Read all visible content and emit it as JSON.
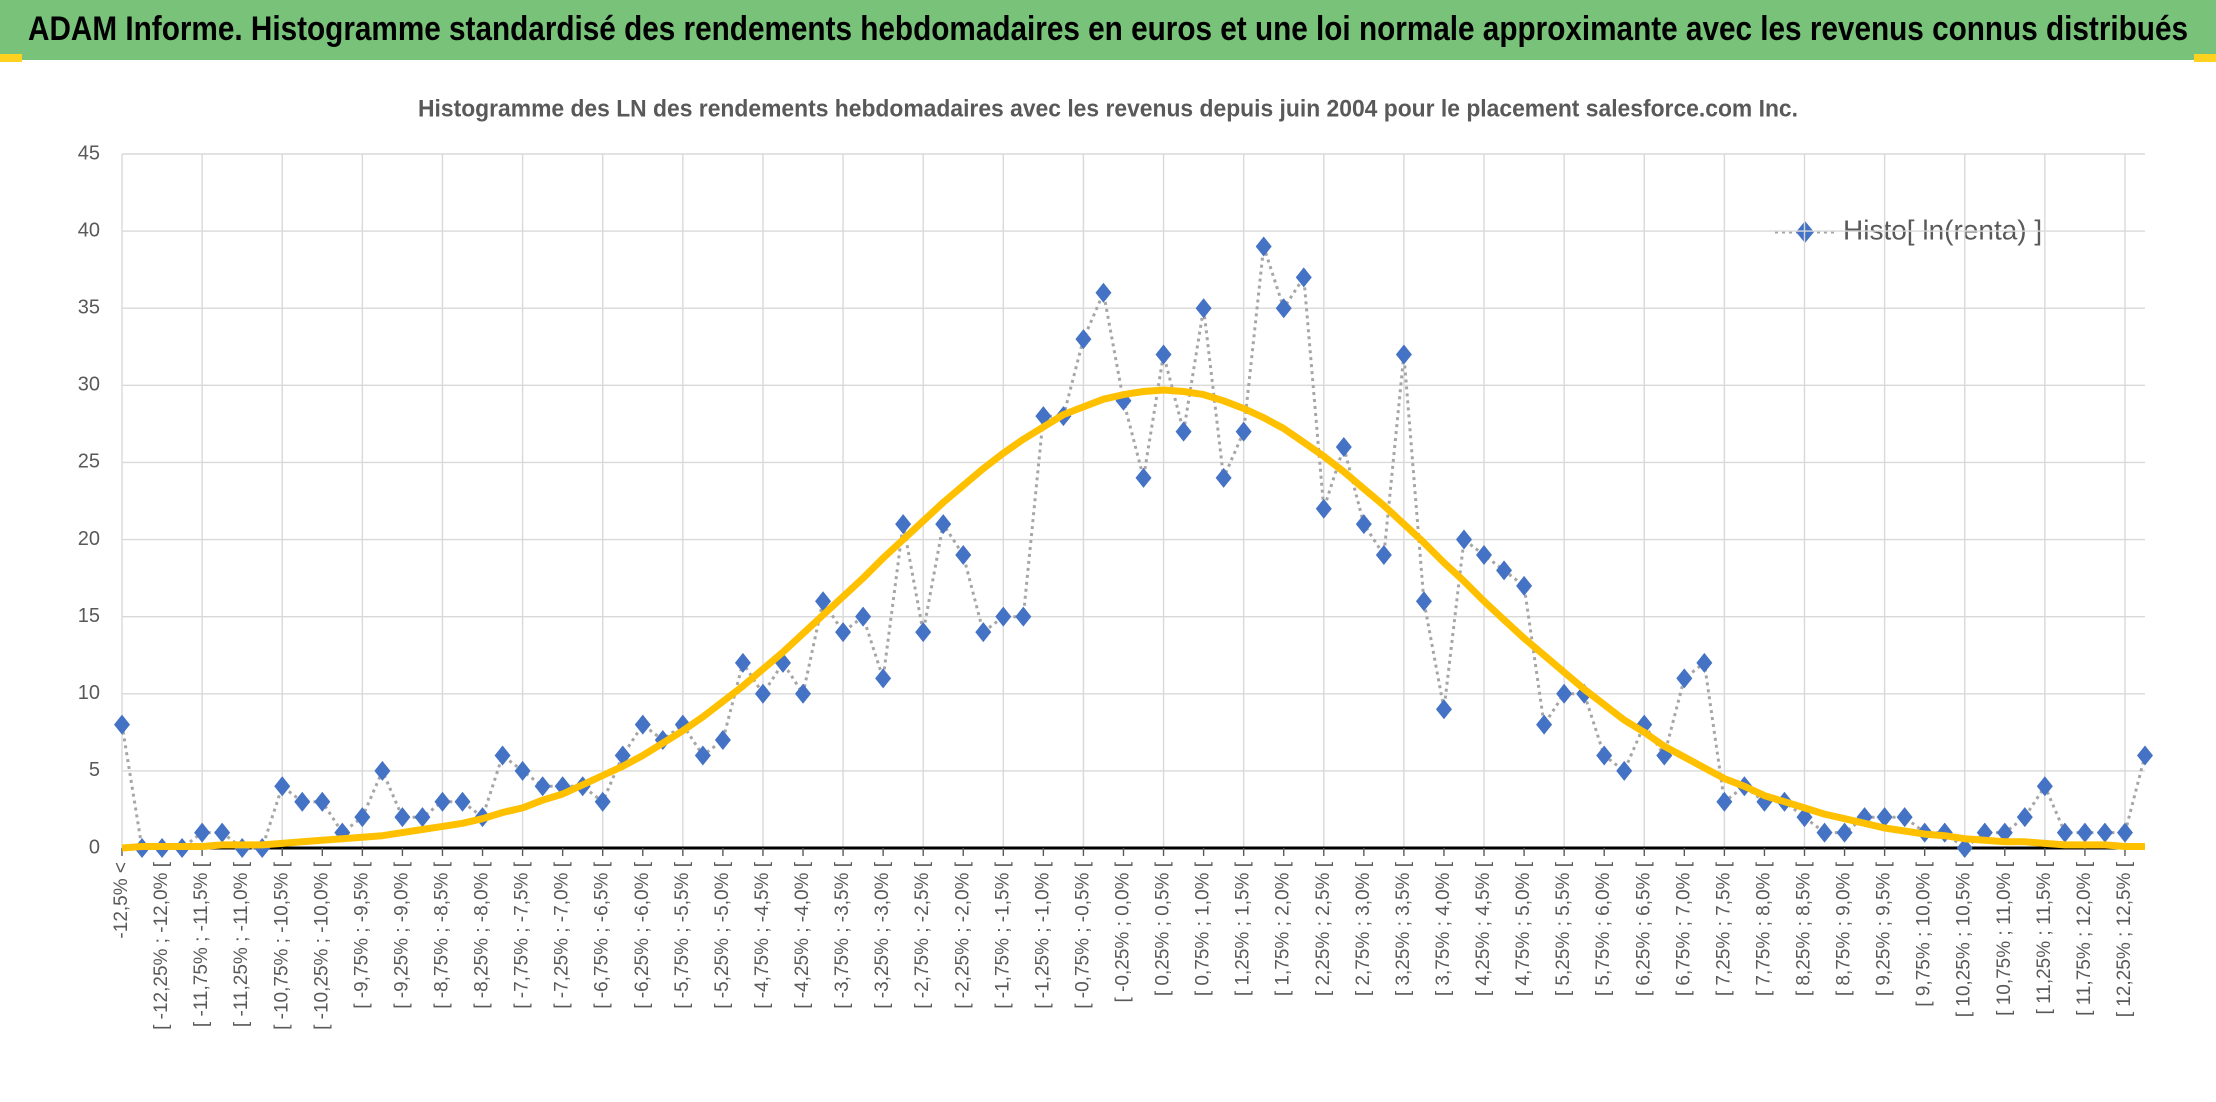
{
  "header": {
    "title": "ADAM Informe. Histogramme standardisé des rendements hebdomadaires en euros et une loi normale approximante avec les revenus connus distribués"
  },
  "chart_data": {
    "type": "line",
    "title": "Histogramme des LN des rendements hebdomadaires avec les revenus depuis juin 2004 pour le placement salesforce.com Inc.",
    "categories": [
      "-12,5% <",
      null,
      "[ -12,25% ; -12,0% [",
      null,
      "[ -11,75% ; -11,5% [",
      null,
      "[ -11,25% ; -11,0% [",
      null,
      "[ -10,75% ; -10,5% [",
      null,
      "[ -10,25% ; -10,0% [",
      null,
      "[ -9,75% ; -9,5% [",
      null,
      "[ -9,25% ; -9,0% [",
      null,
      "[ -8,75% ; -8,5% [",
      null,
      "[ -8,25% ; -8,0% [",
      null,
      "[ -7,75% ; -7,5% [",
      null,
      "[ -7,25% ; -7,0% [",
      null,
      "[ -6,75% ; -6,5% [",
      null,
      "[ -6,25% ; -6,0% [",
      null,
      "[ -5,75% ; -5,5% [",
      null,
      "[ -5,25% ; -5,0% [",
      null,
      "[ -4,75% ; -4,5% [",
      null,
      "[ -4,25% ; -4,0% [",
      null,
      "[ -3,75% ; -3,5% [",
      null,
      "[ -3,25% ; -3,0% [",
      null,
      "[ -2,75% ; -2,5% [",
      null,
      "[ -2,25% ; -2,0% [",
      null,
      "[ -1,75% ; -1,5% [",
      null,
      "[ -1,25% ; -1,0% [",
      null,
      "[ -0,75% ; -0,5% [",
      null,
      "[ -0,25% ; 0,0% [",
      null,
      "[ 0,25% ; 0,5% [",
      null,
      "[ 0,75% ; 1,0% [",
      null,
      "[ 1,25% ; 1,5% [",
      null,
      "[ 1,75% ; 2,0% [",
      null,
      "[ 2,25% ; 2,5% [",
      null,
      "[ 2,75% ; 3,0% [",
      null,
      "[ 3,25% ; 3,5% [",
      null,
      "[ 3,75% ; 4,0% [",
      null,
      "[ 4,25% ; 4,5% [",
      null,
      "[ 4,75% ; 5,0% [",
      null,
      "[ 5,25% ; 5,5% [",
      null,
      "[ 5,75% ; 6,0% [",
      null,
      "[ 6,25% ; 6,5% [",
      null,
      "[ 6,75% ; 7,0% [",
      null,
      "[ 7,25% ; 7,5% [",
      null,
      "[ 7,75% ; 8,0% [",
      null,
      "[ 8,25% ; 8,5% [",
      null,
      "[ 8,75% ; 9,0% [",
      null,
      "[ 9,25% ; 9,5% [",
      null,
      "[ 9,75% ; 10,0% [",
      null,
      "[ 10,25% ; 10,5% [",
      null,
      "[ 10,75% ; 11,0% [",
      null,
      "[ 11,25% ; 11,5% [",
      null,
      "[ 11,75% ; 12,0% [",
      null,
      "[ 12,25% ; 12,5% [",
      null
    ],
    "series": [
      {
        "name": "Histo[ ln(renta) ]",
        "color": "#4472c4",
        "line_color": "#a6a6a6",
        "values": [
          8,
          0,
          0,
          0,
          1,
          1,
          0,
          0,
          4,
          3,
          3,
          1,
          2,
          5,
          2,
          2,
          3,
          3,
          2,
          6,
          5,
          4,
          4,
          4,
          3,
          6,
          8,
          7,
          8,
          6,
          7,
          12,
          10,
          12,
          10,
          16,
          14,
          15,
          11,
          21,
          14,
          21,
          19,
          14,
          15,
          15,
          28,
          28,
          33,
          36,
          29,
          24,
          32,
          27,
          35,
          24,
          27,
          39,
          35,
          37,
          22,
          26,
          21,
          19,
          32,
          16,
          9,
          20,
          19,
          18,
          17,
          8,
          10,
          10,
          6,
          5,
          8,
          6,
          11,
          12,
          3,
          4,
          3,
          3,
          2,
          1,
          1,
          2,
          2,
          2,
          1,
          1,
          0,
          1,
          1,
          2,
          4,
          1,
          1,
          1,
          1,
          6
        ]
      }
    ],
    "curve": {
      "color": "#ffc000",
      "values": [
        0.0,
        0.1,
        0.1,
        0.1,
        0.1,
        0.2,
        0.2,
        0.2,
        0.3,
        0.4,
        0.5,
        0.6,
        0.7,
        0.8,
        1.0,
        1.2,
        1.4,
        1.6,
        1.9,
        2.3,
        2.6,
        3.1,
        3.5,
        4.1,
        4.7,
        5.3,
        6.0,
        6.8,
        7.6,
        8.5,
        9.5,
        10.5,
        11.6,
        12.7,
        13.9,
        15.1,
        16.3,
        17.5,
        18.8,
        20.0,
        21.2,
        22.4,
        23.5,
        24.6,
        25.6,
        26.5,
        27.3,
        28.1,
        28.6,
        29.1,
        29.4,
        29.6,
        29.7,
        29.6,
        29.4,
        29.0,
        28.5,
        27.9,
        27.2,
        26.3,
        25.4,
        24.4,
        23.3,
        22.2,
        21.0,
        19.8,
        18.5,
        17.3,
        16.0,
        14.8,
        13.6,
        12.5,
        11.4,
        10.3,
        9.3,
        8.3,
        7.5,
        6.6,
        5.9,
        5.2,
        4.5,
        4.0,
        3.4,
        3.0,
        2.6,
        2.2,
        1.9,
        1.6,
        1.3,
        1.1,
        0.9,
        0.8,
        0.6,
        0.5,
        0.4,
        0.4,
        0.3,
        0.2,
        0.2,
        0.2,
        0.1,
        0.1
      ]
    },
    "ylim": [
      0,
      45
    ],
    "yticks": [
      0,
      5,
      10,
      15,
      20,
      25,
      30,
      35,
      40,
      45
    ],
    "grid": true,
    "legend": "top-right"
  }
}
